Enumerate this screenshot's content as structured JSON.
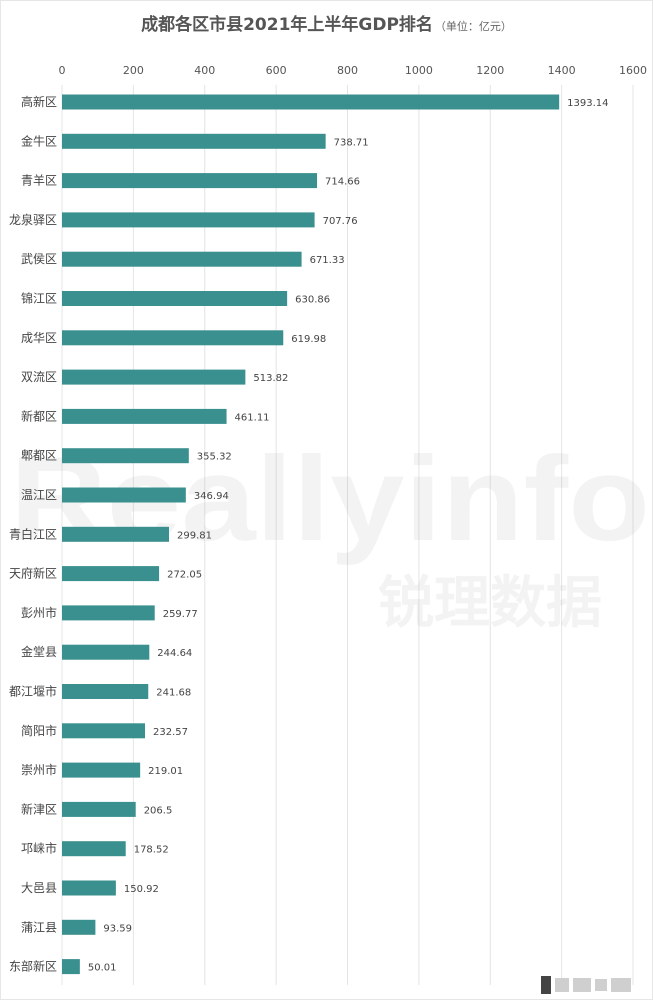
{
  "chart_data": {
    "type": "bar",
    "orientation": "horizontal",
    "title": "成都各区市县2021年上半年GDP排名",
    "unit_note": "（单位：亿元）",
    "xlim": [
      0,
      1600
    ],
    "x_ticks": [
      0,
      200,
      400,
      600,
      800,
      1000,
      1200,
      1400,
      1600
    ],
    "x_axis_position": "top",
    "grid": true,
    "bar_color": "#3a8f8f",
    "categories": [
      "高新区",
      "金牛区",
      "青羊区",
      "龙泉驿区",
      "武侯区",
      "锦江区",
      "成华区",
      "双流区",
      "新都区",
      "郫都区",
      "温江区",
      "青白江区",
      "天府新区",
      "彭州市",
      "金堂县",
      "都江堰市",
      "简阳市",
      "崇州市",
      "新津区",
      "邛崃市",
      "大邑县",
      "蒲江县",
      "东部新区"
    ],
    "values": [
      1393.14,
      738.71,
      714.66,
      707.76,
      671.33,
      630.86,
      619.98,
      513.82,
      461.11,
      355.32,
      346.94,
      299.81,
      272.05,
      259.77,
      244.64,
      241.68,
      232.57,
      219.01,
      206.5,
      178.52,
      150.92,
      93.59,
      50.01
    ],
    "value_labels": [
      "1393.14",
      "738.71",
      "714.66",
      "707.76",
      "671.33",
      "630.86",
      "619.98",
      "513.82",
      "461.11",
      "355.32",
      "346.94",
      "299.81",
      "272.05",
      "259.77",
      "244.64",
      "241.68",
      "232.57",
      "219.01",
      "206.5",
      "178.52",
      "150.92",
      "93.59",
      "50.01"
    ]
  },
  "watermark": {
    "text_en": "Reallyinfo",
    "text_cn": "锐理数据",
    "color": "#888888"
  }
}
